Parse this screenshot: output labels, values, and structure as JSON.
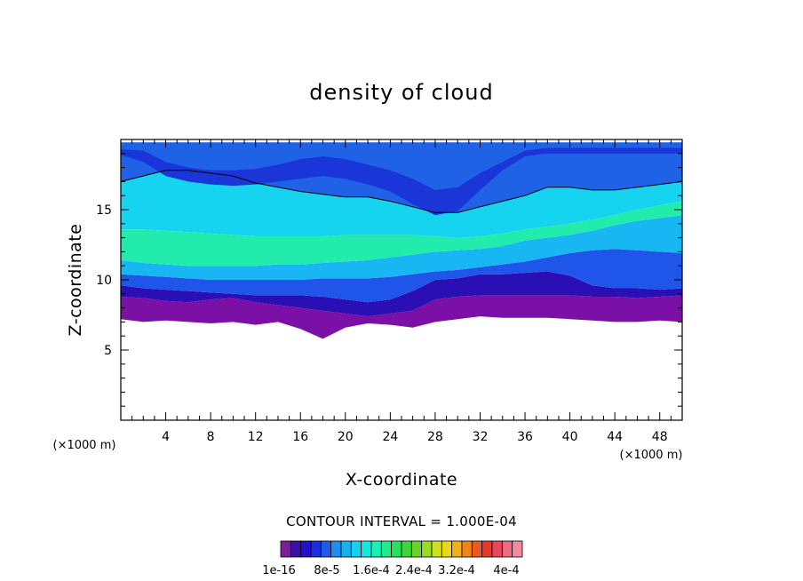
{
  "chart_data": {
    "type": "heatmap",
    "title": "density of cloud",
    "xlabel": "X-coordinate",
    "ylabel": "Z-coordinate",
    "x_unit_left": "(×1000 m)",
    "x_unit_right": "(×1000 m)",
    "xlim": [
      0,
      50
    ],
    "ylim": [
      0,
      20
    ],
    "x_ticks": [
      4,
      8,
      12,
      16,
      20,
      24,
      28,
      32,
      36,
      40,
      44,
      48
    ],
    "y_ticks": [
      5,
      10,
      15
    ],
    "contour_interval_label": "CONTOUR INTERVAL = 1.000E-04",
    "colorbar": {
      "labels": [
        "1e-16",
        "8e-5",
        "1.6e-4",
        "2.4e-4",
        "3.2e-4",
        "4e-4"
      ],
      "colors": [
        "#7b1d9b",
        "#3a0fa8",
        "#2410c8",
        "#1a2ee0",
        "#1f5ce6",
        "#1d8df0",
        "#19b0f2",
        "#16d0f0",
        "#14e8e0",
        "#18f0b4",
        "#20ec8a",
        "#26e25e",
        "#3ad63a",
        "#6ad22a",
        "#9ada22",
        "#cce21e",
        "#ecd81a",
        "#f2b018",
        "#f08418",
        "#ea5a1e",
        "#e63a2a",
        "#e8485a",
        "#ee6a82",
        "#f28c9c"
      ]
    },
    "cloud_layers": [
      {
        "name_color": "#7a10a6",
        "z_bottom": [
          7.2,
          7.0,
          7.1,
          7.0,
          6.9,
          7.0,
          6.8,
          7.0,
          6.5,
          5.8,
          6.6,
          6.9,
          6.8,
          6.6,
          7.0,
          7.2,
          7.4,
          7.3,
          7.3,
          7.3,
          7.2,
          7.1,
          7.0,
          7.0,
          7.1,
          7.0
        ],
        "z_top": [
          8.8,
          8.7,
          8.5,
          8.4,
          8.6,
          8.7,
          8.4,
          8.2,
          8.0,
          7.8,
          7.6,
          7.4,
          7.6,
          7.8,
          8.6,
          8.8,
          8.9,
          8.9,
          8.9,
          8.9,
          8.9,
          8.8,
          8.8,
          8.7,
          8.8,
          8.9
        ]
      },
      {
        "name_color": "#2a0fb4",
        "z_bottom": [
          8.8,
          8.7,
          8.5,
          8.4,
          8.6,
          8.7,
          8.4,
          8.2,
          8.0,
          7.8,
          7.6,
          7.4,
          7.6,
          7.8,
          8.6,
          8.8,
          8.9,
          8.9,
          8.9,
          8.9,
          8.9,
          8.8,
          8.8,
          8.7,
          8.8,
          8.9
        ],
        "z_top": [
          9.6,
          9.4,
          9.3,
          9.2,
          9.1,
          9.0,
          8.9,
          8.9,
          8.9,
          8.8,
          8.6,
          8.4,
          8.6,
          9.2,
          10.0,
          10.1,
          10.4,
          10.4,
          10.5,
          10.6,
          10.3,
          9.6,
          9.4,
          9.4,
          9.3,
          9.4
        ]
      },
      {
        "name_color": "#1f55e8",
        "z_bottom": [
          9.6,
          9.4,
          9.3,
          9.2,
          9.1,
          9.0,
          8.9,
          8.9,
          8.9,
          8.8,
          8.6,
          8.4,
          8.6,
          9.2,
          10.0,
          10.1,
          10.4,
          10.4,
          10.5,
          10.6,
          10.3,
          9.6,
          9.4,
          9.4,
          9.3,
          9.4
        ],
        "z_top": [
          10.4,
          10.3,
          10.2,
          10.1,
          10.0,
          10.0,
          10.0,
          10.0,
          10.0,
          10.1,
          10.1,
          10.1,
          10.2,
          10.4,
          10.6,
          10.7,
          10.9,
          11.1,
          11.3,
          11.6,
          11.9,
          12.1,
          12.2,
          12.1,
          12.0,
          11.9
        ]
      },
      {
        "name_color": "#19b6f4",
        "z_bottom": [
          10.4,
          10.3,
          10.2,
          10.1,
          10.0,
          10.0,
          10.0,
          10.0,
          10.0,
          10.1,
          10.1,
          10.1,
          10.2,
          10.4,
          10.6,
          10.7,
          10.9,
          11.1,
          11.3,
          11.6,
          11.9,
          12.1,
          12.2,
          12.1,
          12.0,
          11.9
        ],
        "z_top": [
          11.4,
          11.2,
          11.1,
          11.0,
          11.0,
          11.0,
          11.0,
          11.1,
          11.1,
          11.2,
          11.3,
          11.4,
          11.6,
          11.8,
          12.0,
          12.1,
          12.2,
          12.4,
          12.8,
          13.0,
          13.2,
          13.5,
          13.9,
          14.2,
          14.4,
          14.6
        ]
      },
      {
        "name_color": "#22ecac",
        "z_bottom": [
          11.4,
          11.2,
          11.1,
          11.0,
          11.0,
          11.0,
          11.0,
          11.1,
          11.1,
          11.2,
          11.3,
          11.4,
          11.6,
          11.8,
          12.0,
          12.1,
          12.2,
          12.4,
          12.8,
          13.0,
          13.2,
          13.5,
          13.9,
          14.2,
          14.4,
          14.6
        ],
        "z_top": [
          13.6,
          13.6,
          13.5,
          13.4,
          13.3,
          13.2,
          13.1,
          13.1,
          13.1,
          13.1,
          13.2,
          13.2,
          13.2,
          13.2,
          13.1,
          13.0,
          13.1,
          13.3,
          13.6,
          13.8,
          14.0,
          14.3,
          14.6,
          15.0,
          15.3,
          15.6
        ]
      },
      {
        "name_color": "#16d4f0",
        "z_bottom": [
          13.6,
          13.6,
          13.5,
          13.4,
          13.3,
          13.2,
          13.1,
          13.1,
          13.1,
          13.1,
          13.2,
          13.2,
          13.2,
          13.2,
          13.1,
          13.0,
          13.1,
          13.3,
          13.6,
          13.8,
          14.0,
          14.3,
          14.6,
          15.0,
          15.3,
          15.6
        ],
        "z_top": [
          17.0,
          17.4,
          17.8,
          17.8,
          17.6,
          17.4,
          16.9,
          16.6,
          16.3,
          16.1,
          15.9,
          15.9,
          15.6,
          15.2,
          14.8,
          14.8,
          15.2,
          15.6,
          16.0,
          16.6,
          16.6,
          16.4,
          16.4,
          16.6,
          16.8,
          17.0
        ]
      },
      {
        "name_color": "#1f62e6",
        "z_bottom": [
          17.0,
          17.4,
          17.8,
          17.8,
          17.6,
          17.4,
          16.9,
          16.6,
          16.3,
          16.1,
          15.9,
          15.9,
          15.6,
          15.2,
          14.8,
          14.8,
          15.2,
          15.6,
          16.0,
          16.6,
          16.6,
          16.4,
          16.4,
          16.6,
          16.8,
          17.0
        ],
        "z_top": [
          19.8,
          19.8,
          19.8,
          19.8,
          19.8,
          19.8,
          19.8,
          19.8,
          19.8,
          19.8,
          19.8,
          19.8,
          19.8,
          19.8,
          19.8,
          19.8,
          19.8,
          19.8,
          19.8,
          19.8,
          19.8,
          19.8,
          19.8,
          19.8,
          19.8,
          19.8
        ]
      },
      {
        "name_color": "#1a36d8",
        "z_bottom": [
          18.9,
          18.4,
          17.4,
          17.0,
          16.8,
          16.7,
          16.8,
          17.0,
          17.2,
          17.4,
          17.2,
          16.8,
          16.3,
          15.4,
          14.6,
          14.9,
          16.4,
          17.8,
          18.8,
          19.0,
          19.0,
          19.0,
          19.0,
          19.0,
          19.0,
          19.0
        ],
        "z_top": [
          19.3,
          19.2,
          18.4,
          18.0,
          17.8,
          17.8,
          17.9,
          18.2,
          18.6,
          18.8,
          18.6,
          18.2,
          17.8,
          17.2,
          16.4,
          16.6,
          17.6,
          18.4,
          19.2,
          19.4,
          19.4,
          19.4,
          19.4,
          19.4,
          19.4,
          19.4
        ]
      }
    ],
    "x_samples": [
      0,
      2,
      4,
      6,
      8,
      10,
      12,
      14,
      16,
      18,
      20,
      22,
      24,
      26,
      28,
      30,
      32,
      34,
      36,
      38,
      40,
      42,
      44,
      46,
      48,
      50
    ]
  }
}
